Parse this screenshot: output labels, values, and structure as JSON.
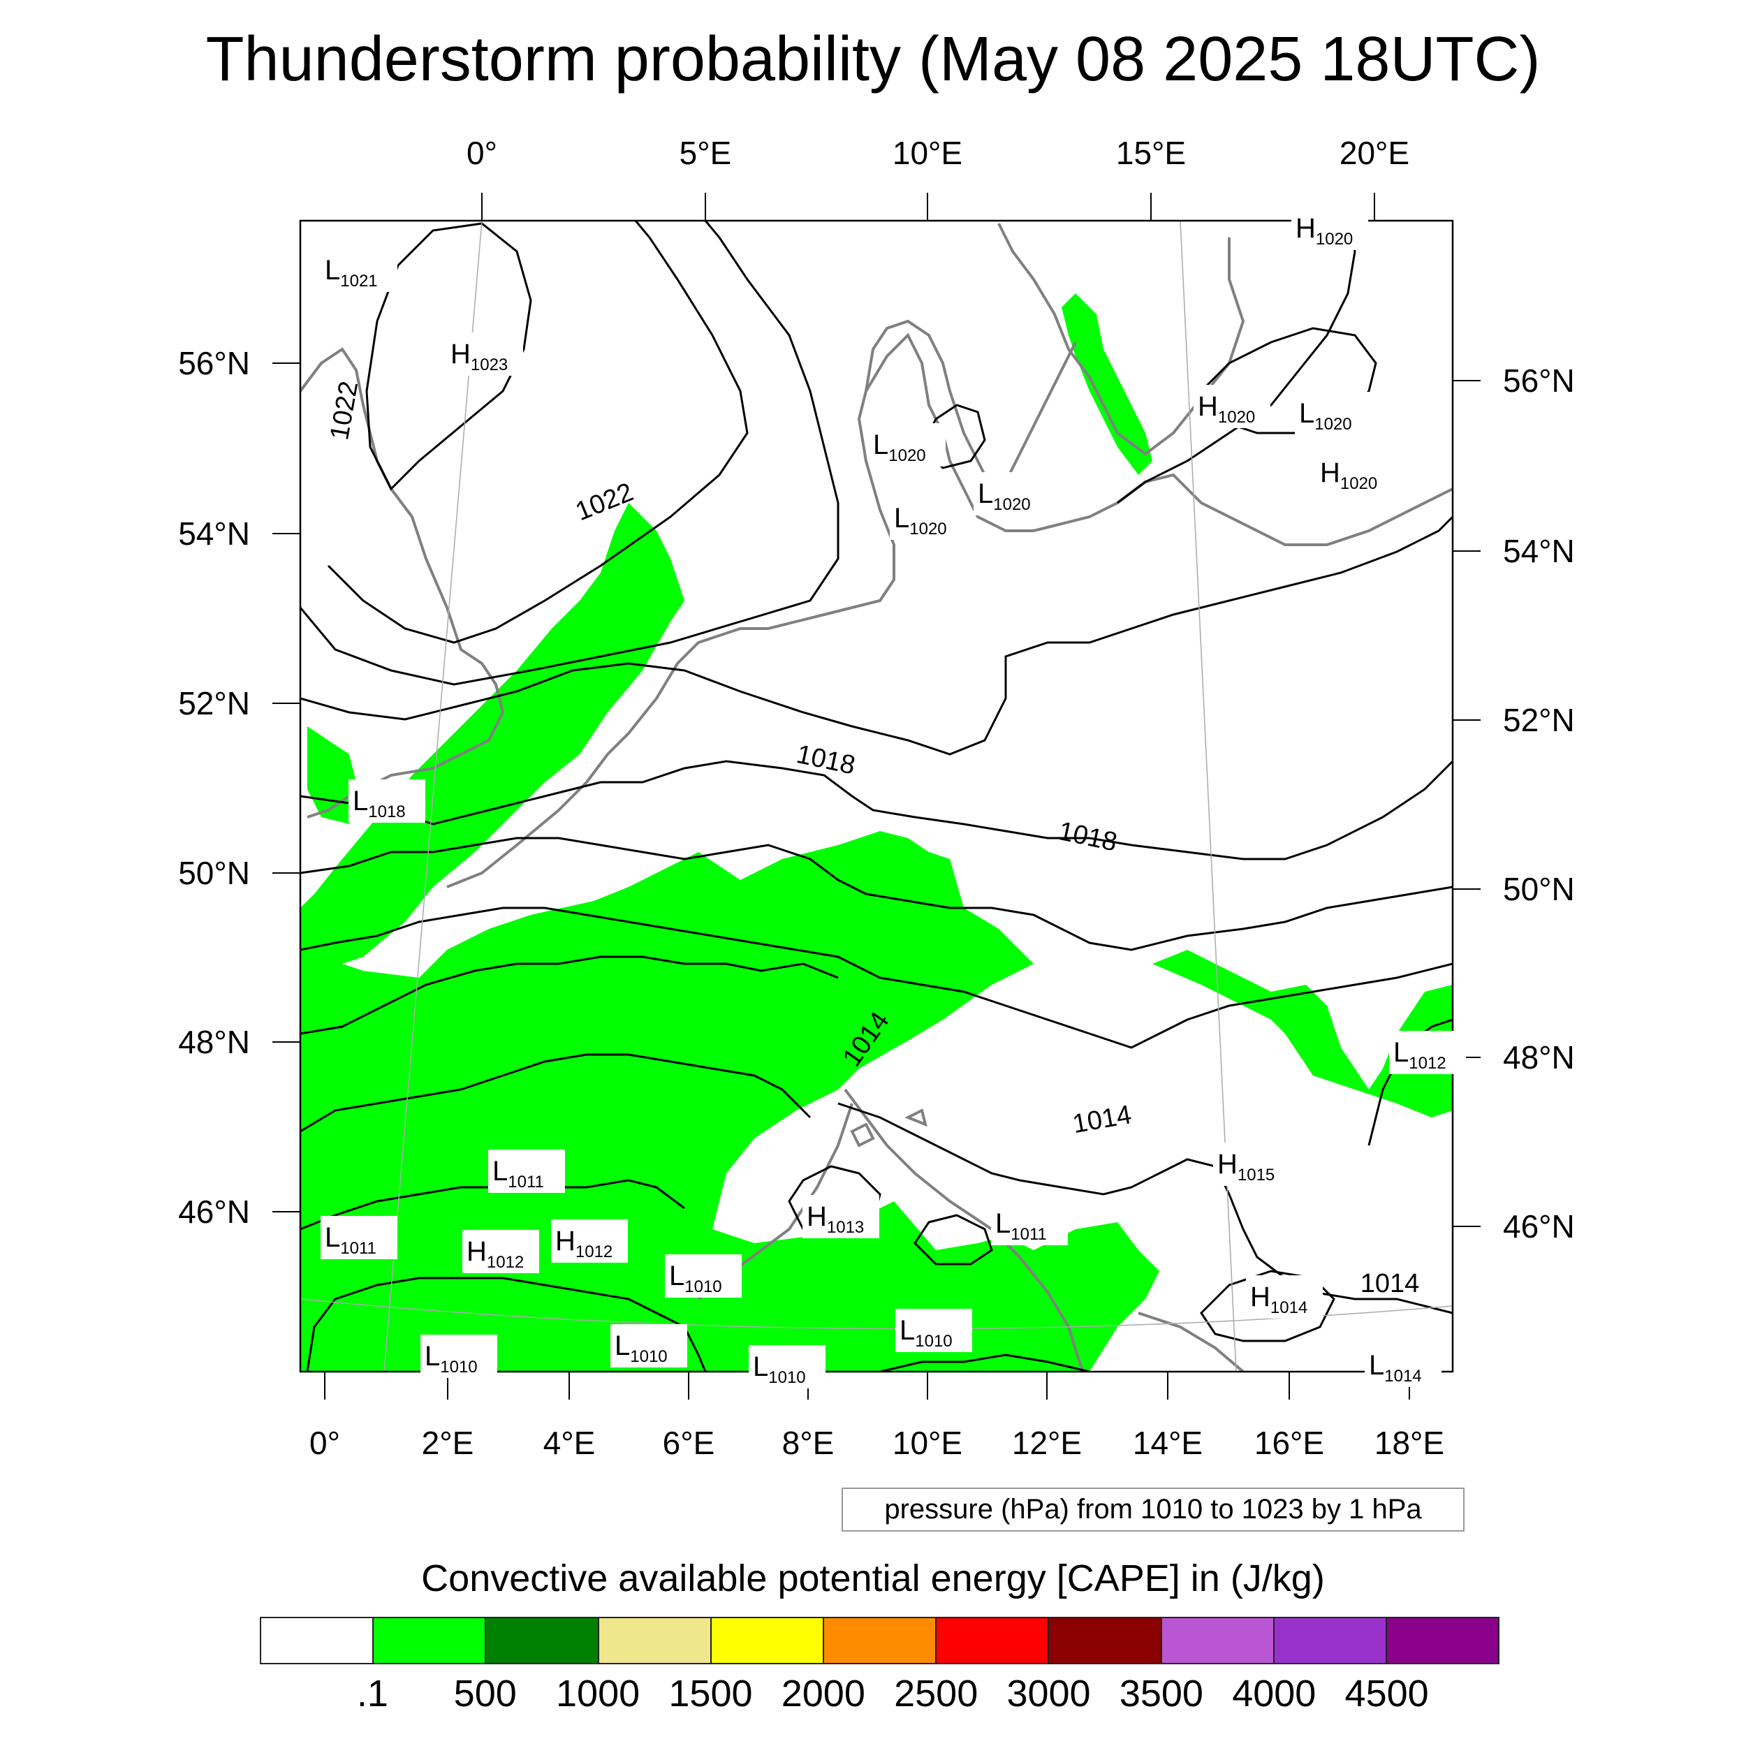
{
  "title": "Thunderstorm probability (May 08 2025 18UTC)",
  "top_lon_labels": [
    "0°",
    "5°E",
    "10°E",
    "15°E",
    "20°E"
  ],
  "bottom_lon_labels": [
    "0°",
    "2°E",
    "4°E",
    "6°E",
    "8°E",
    "10°E",
    "12°E",
    "14°E",
    "16°E",
    "18°E"
  ],
  "left_lat_labels": [
    "56°N",
    "54°N",
    "52°N",
    "50°N",
    "48°N",
    "46°N"
  ],
  "right_lat_labels": [
    "56°N",
    "54°N",
    "52°N",
    "50°N",
    "48°N",
    "46°N"
  ],
  "isobar_labels": [
    "1022",
    "1022",
    "1018",
    "1018",
    "1014",
    "1014",
    "1014"
  ],
  "pressure_centers": [
    {
      "type": "L",
      "value": "1021"
    },
    {
      "type": "H",
      "value": "1023"
    },
    {
      "type": "H",
      "value": "1020"
    },
    {
      "type": "H",
      "value": "1020"
    },
    {
      "type": "L",
      "value": "1020"
    },
    {
      "type": "H",
      "value": "1020"
    },
    {
      "type": "L",
      "value": "1020"
    },
    {
      "type": "L",
      "value": "1020"
    },
    {
      "type": "L",
      "value": "1020"
    },
    {
      "type": "L",
      "value": "1018"
    },
    {
      "type": "L",
      "value": "1012"
    },
    {
      "type": "L",
      "value": "1011"
    },
    {
      "type": "H",
      "value": "1015"
    },
    {
      "type": "L",
      "value": "1011"
    },
    {
      "type": "H",
      "value": "1012"
    },
    {
      "type": "H",
      "value": "1012"
    },
    {
      "type": "H",
      "value": "1013"
    },
    {
      "type": "L",
      "value": "1011"
    },
    {
      "type": "L",
      "value": "1010"
    },
    {
      "type": "H",
      "value": "1014"
    },
    {
      "type": "L",
      "value": "1010"
    },
    {
      "type": "L",
      "value": "1010"
    },
    {
      "type": "L",
      "value": "1010"
    },
    {
      "type": "L",
      "value": "1010"
    },
    {
      "type": "L",
      "value": "1014"
    }
  ],
  "contour_info": "pressure (hPa) from 1010 to 1023 by 1 hPa",
  "colorbar": {
    "title": "Convective available potential energy [CAPE] in (J/kg)",
    "labels": [
      ".1",
      "500",
      "1000",
      "1500",
      "2000",
      "2500",
      "3000",
      "3500",
      "4000",
      "4500"
    ],
    "colors": [
      "#ffffff",
      "#00ff00",
      "#008000",
      "#f0e68c",
      "#ffff00",
      "#ff8c00",
      "#ff0000",
      "#8b0000",
      "#ba55d3",
      "#9932cc",
      "#8b008b"
    ]
  },
  "cape_color": "#00ff00",
  "coast_color": "#808080"
}
